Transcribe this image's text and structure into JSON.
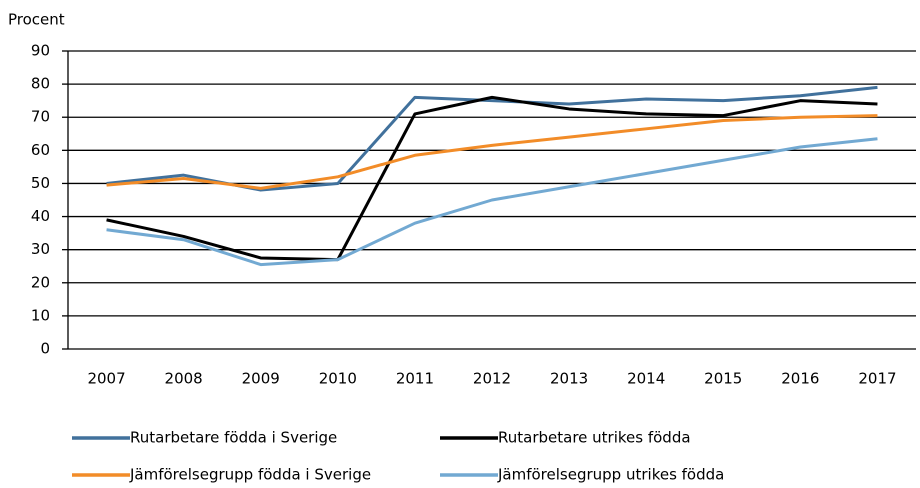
{
  "chart_data": {
    "type": "line",
    "y_label": "Procent",
    "categories": [
      "2007",
      "2008",
      "2009",
      "2010",
      "2011",
      "2012",
      "2013",
      "2014",
      "2015",
      "2016",
      "2017"
    ],
    "series": [
      {
        "name": "Rutarbetare födda i Sverige",
        "color": "#41719c",
        "values": [
          50,
          52.5,
          48,
          50,
          76,
          75,
          74,
          75.5,
          75,
          76.5,
          79
        ]
      },
      {
        "name": "Rutarbetare utrikes födda",
        "color": "#000000",
        "values": [
          39,
          34,
          27.5,
          27,
          71,
          76,
          72.5,
          71,
          70.5,
          75,
          74
        ]
      },
      {
        "name": "Jämförelsegrupp födda i Sverige",
        "color": "#f28c28",
        "values": [
          49.5,
          51.5,
          48.5,
          52,
          58.5,
          61.5,
          64,
          66.5,
          69,
          70,
          70.5
        ]
      },
      {
        "name": "Jämförelsegrupp utrikes födda",
        "color": "#72a9d2",
        "values": [
          36,
          33,
          25.5,
          27,
          38,
          45,
          49,
          53,
          57,
          61,
          63.5
        ]
      }
    ],
    "ylim": [
      0,
      90
    ],
    "yticks": [
      0,
      10,
      20,
      30,
      40,
      50,
      60,
      70,
      80,
      90
    ],
    "grid": true
  }
}
